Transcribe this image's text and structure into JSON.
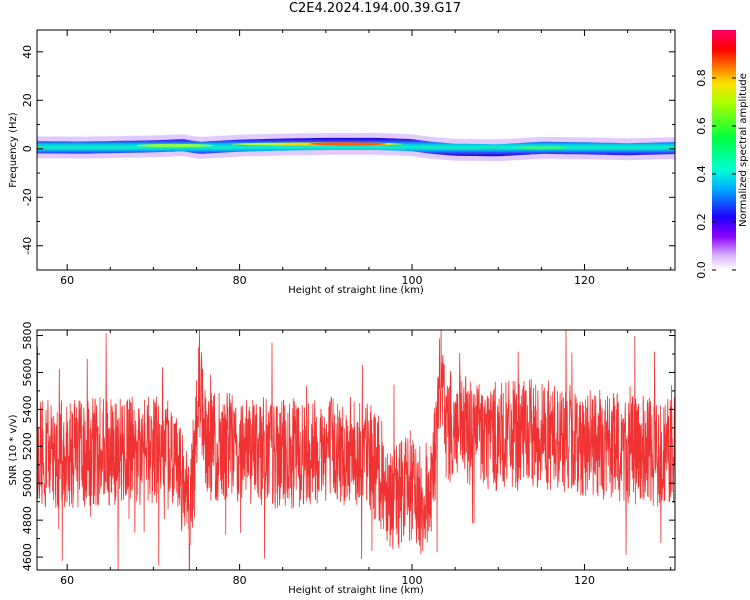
{
  "title": "C2E4.2024.194.00.39.G17",
  "chart_data": [
    {
      "type": "heatmap",
      "xlabel": "Height of straight line (km)",
      "ylabel": "Frequency (Hz)",
      "xlim": [
        56.5,
        130.5
      ],
      "ylim": [
        -50,
        49
      ],
      "xticks": [
        60,
        80,
        100,
        120
      ],
      "yticks": [
        -40,
        -20,
        0,
        20,
        40
      ],
      "colorbar": {
        "label": "Normalized spectral amplitude",
        "range": [
          0,
          1
        ],
        "ticks": [
          "0.0",
          "0.2",
          "0.4",
          "0.6",
          "0.8"
        ]
      },
      "band_center_hz": [
        [
          56.5,
          0.6
        ],
        [
          62,
          0.5
        ],
        [
          70,
          1.0
        ],
        [
          73.5,
          1.5
        ],
        [
          74.5,
          0.8
        ],
        [
          75.5,
          0.4
        ],
        [
          80,
          1.3
        ],
        [
          86,
          1.8
        ],
        [
          90,
          2.0
        ],
        [
          96,
          2.0
        ],
        [
          100,
          1.5
        ],
        [
          102,
          0.5
        ],
        [
          105,
          -0.4
        ],
        [
          110,
          -0.6
        ],
        [
          115,
          0.4
        ],
        [
          120,
          0.2
        ],
        [
          125,
          -0.2
        ],
        [
          130.5,
          0.3
        ]
      ],
      "band_halfwidth_hz": 2.5,
      "halo_halfwidth_hz": 4.5
    },
    {
      "type": "line",
      "xlabel": "Height of straight line (km)",
      "ylabel": "SNR (10 * v/v)",
      "xlim": [
        56.5,
        130.5
      ],
      "ylim": [
        4530,
        5830
      ],
      "xticks": [
        60,
        80,
        100,
        120
      ],
      "yticks": [
        4600,
        4800,
        5000,
        5200,
        5400,
        5600,
        5800
      ],
      "color": "#f03232",
      "mean_snr": [
        [
          56.5,
          5160
        ],
        [
          60,
          5160
        ],
        [
          65,
          5180
        ],
        [
          70,
          5180
        ],
        [
          72,
          5150
        ],
        [
          73.5,
          5000
        ],
        [
          74.2,
          4800
        ],
        [
          74.8,
          5200
        ],
        [
          75.3,
          5600
        ],
        [
          76,
          5200
        ],
        [
          80,
          5200
        ],
        [
          85,
          5150
        ],
        [
          90,
          5200
        ],
        [
          95,
          5150
        ],
        [
          97,
          5000
        ],
        [
          98,
          4900
        ],
        [
          99,
          5000
        ],
        [
          101,
          4900
        ],
        [
          102,
          4950
        ],
        [
          102.8,
          5200
        ],
        [
          103.3,
          5600
        ],
        [
          104,
          5300
        ],
        [
          110,
          5250
        ],
        [
          115,
          5270
        ],
        [
          120,
          5220
        ],
        [
          125,
          5180
        ],
        [
          130.5,
          5170
        ]
      ],
      "noise_pp": 300
    }
  ]
}
